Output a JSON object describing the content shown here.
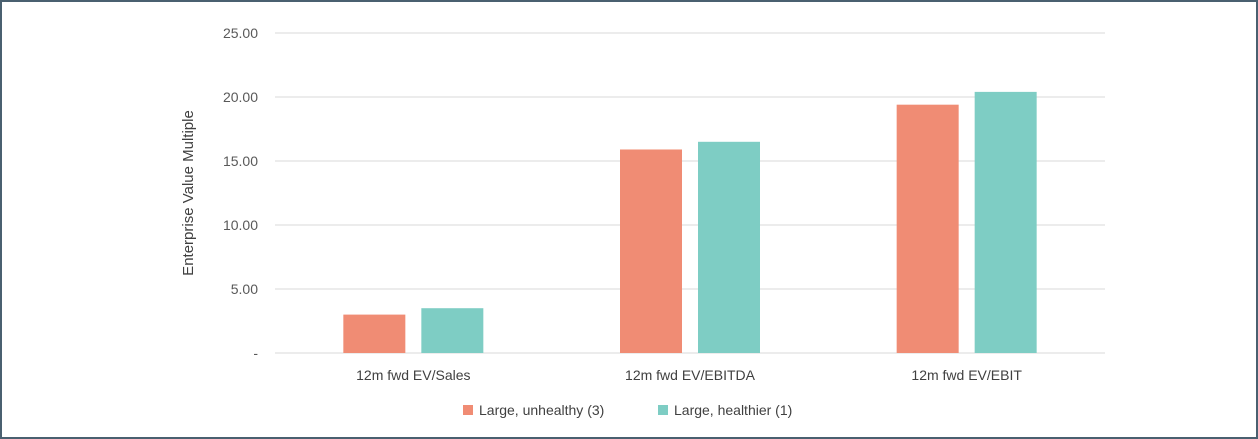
{
  "chart_data": {
    "type": "bar",
    "title": "",
    "xlabel": "",
    "ylabel": "Enterprise Value Multiple",
    "categories": [
      "12m fwd EV/Sales",
      "12m fwd EV/EBITDA",
      "12m fwd EV/EBIT"
    ],
    "series": [
      {
        "name": "Large, unhealthy (3)",
        "values": [
          3.0,
          15.9,
          19.4
        ],
        "color": "#f08c74"
      },
      {
        "name": "Large, healthier (1)",
        "values": [
          3.5,
          16.5,
          20.4
        ],
        "color": "#7ecdc4"
      }
    ],
    "ylim": [
      0,
      25
    ],
    "yticks": [
      {
        "value": 0,
        "label": "-"
      },
      {
        "value": 5,
        "label": "5.00"
      },
      {
        "value": 10,
        "label": "10.00"
      },
      {
        "value": 15,
        "label": "15.00"
      },
      {
        "value": 20,
        "label": "20.00"
      },
      {
        "value": 25,
        "label": "25.00"
      }
    ],
    "grid": true,
    "gridline_color": "#d9d9d9",
    "legend_position": "bottom"
  }
}
